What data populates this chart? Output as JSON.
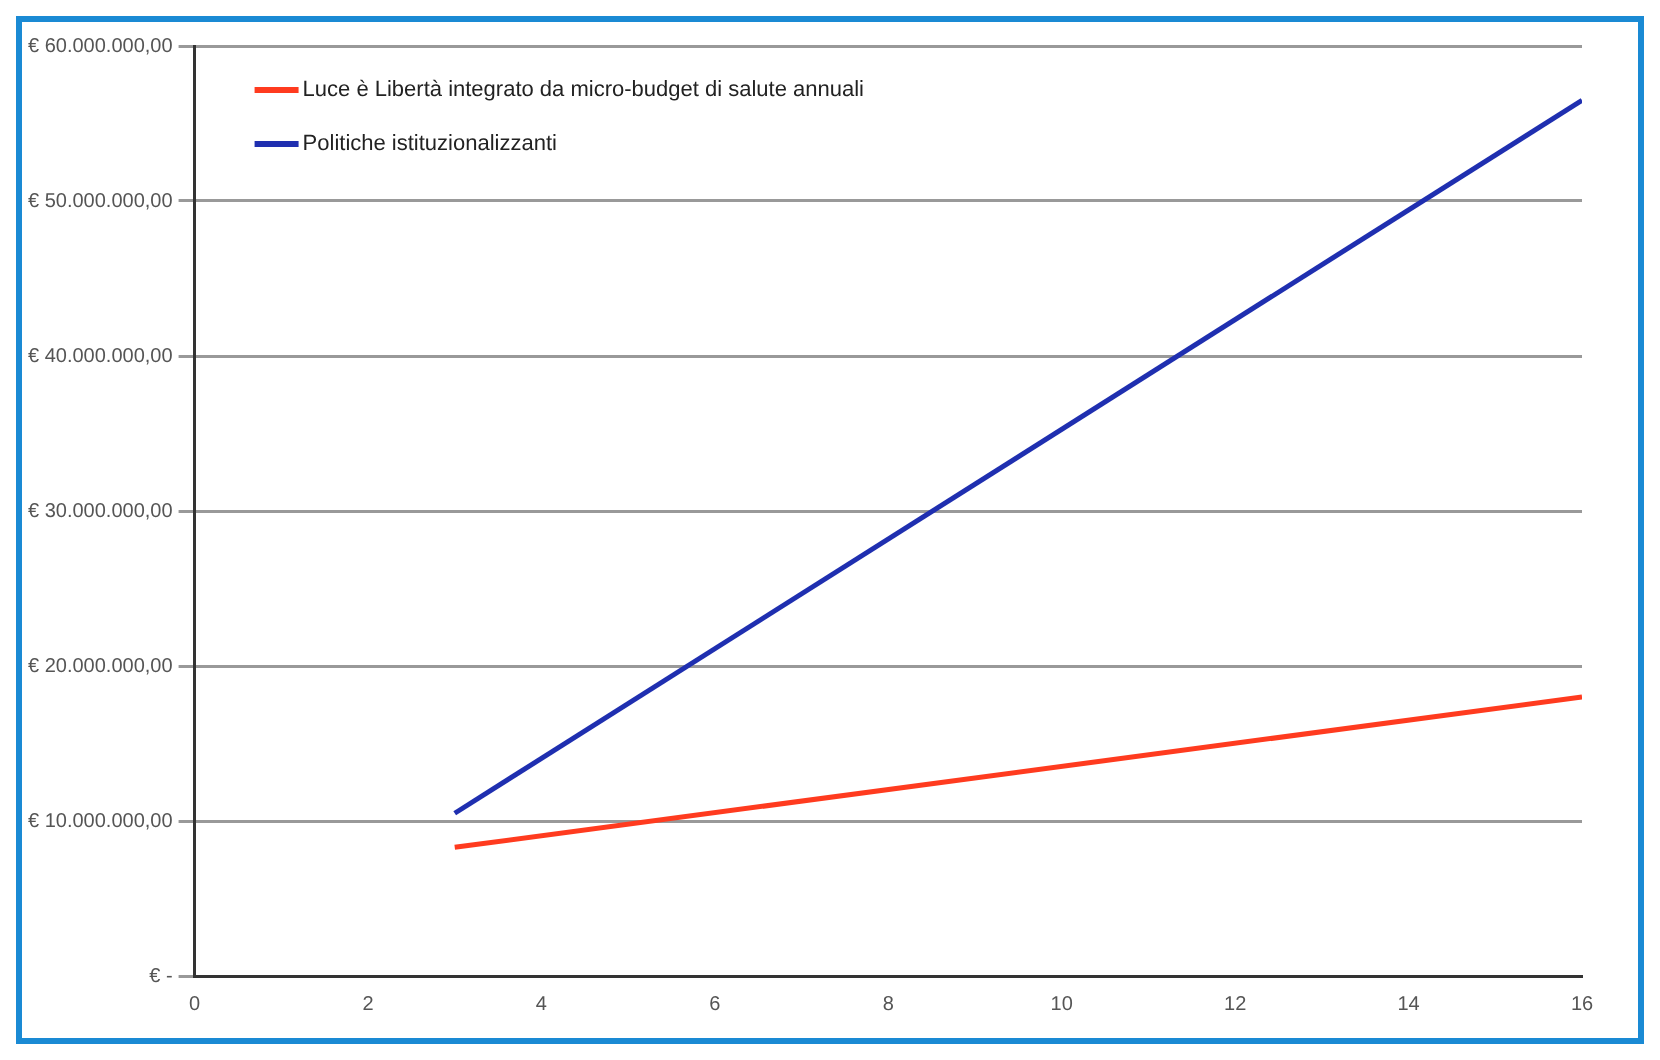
{
  "chart_data": {
    "type": "line",
    "x": [
      3,
      16
    ],
    "series": [
      {
        "name": "Luce è Libertà integrato da micro-budget di salute annuali",
        "color": "#ff3b1f",
        "values": [
          8300000,
          18000000
        ]
      },
      {
        "name": "Politiche istituzionalizzanti",
        "color": "#1f2fb0",
        "values": [
          10500000,
          56500000
        ]
      }
    ],
    "xlim": [
      0,
      16
    ],
    "xticks": [
      0,
      2,
      4,
      6,
      8,
      10,
      12,
      14,
      16
    ],
    "ylim": [
      0,
      60000000
    ],
    "yticks": [
      {
        "value": 0,
        "label": "€ -"
      },
      {
        "value": 10000000,
        "label": "€ 10.000.000,00"
      },
      {
        "value": 20000000,
        "label": "€ 20.000.000,00"
      },
      {
        "value": 30000000,
        "label": "€ 30.000.000,00"
      },
      {
        "value": 40000000,
        "label": "€ 40.000.000,00"
      },
      {
        "value": 50000000,
        "label": "€ 50.000.000,00"
      },
      {
        "value": 60000000,
        "label": "€ 60.000.000,00"
      }
    ],
    "grid": "y",
    "legend": "top left",
    "marker": "none",
    "line_style": "solid"
  }
}
